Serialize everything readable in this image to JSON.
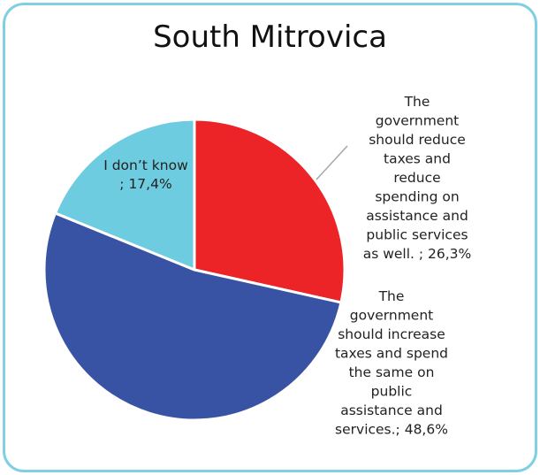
{
  "chart_data": {
    "type": "pie",
    "title": "South Mitrovica",
    "start_angle_deg": 0,
    "direction": "clockwise",
    "slices": [
      {
        "label": "The government should reduce taxes and reduce spending on assistance and public services as well.",
        "value_text": "; 26,3%",
        "value": 26.3,
        "color": "#ec2327",
        "label_lines": [
          "The",
          "government",
          "should reduce",
          "taxes and",
          "reduce",
          "spending on",
          "assistance and",
          "public services",
          "as well. ; 26,3%"
        ]
      },
      {
        "label": "The government should increase taxes and spend the same on public assistance and services.",
        "value_text": "; 48,6%",
        "value": 48.6,
        "color": "#3953a4",
        "label_lines": [
          "The",
          "government",
          "should increase",
          "taxes and spend",
          "the same on",
          "public",
          "assistance and",
          "services.; 48,6%"
        ]
      },
      {
        "label": "I don't know",
        "value_text": "; 17,4%",
        "value": 17.4,
        "color": "#6ecce0",
        "label_lines": [
          "I don’t know",
          "; 17,4%"
        ]
      }
    ],
    "legend": "none",
    "colors": {
      "border": "#7fd0e2",
      "slice_edge": "#ffffff",
      "leader_line": "#a6a6a6"
    }
  }
}
